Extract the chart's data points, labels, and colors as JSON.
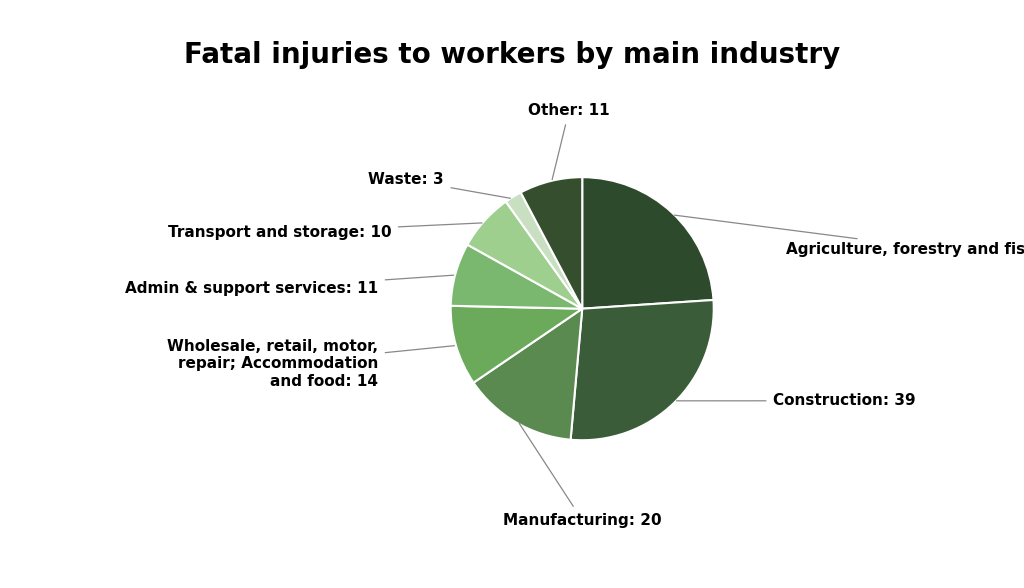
{
  "title": "Fatal injuries to workers by main industry",
  "title_fontsize": 20,
  "title_fontweight": "bold",
  "segments": [
    {
      "label": "Agriculture, forestry and fishing",
      "value": 34,
      "color": "#2d4a2d"
    },
    {
      "label": "Construction",
      "value": 39,
      "color": "#3a5c38"
    },
    {
      "label": "Manufacturing",
      "value": 20,
      "color": "#5a8a50"
    },
    {
      "label": "Wholesale, retail, motor,\nrepair; Accommodation\nand food",
      "value": 14,
      "color": "#6aaa5a"
    },
    {
      "label": "Admin & support services",
      "value": 11,
      "color": "#7ab870"
    },
    {
      "label": "Transport and storage",
      "value": 10,
      "color": "#9ecf8e"
    },
    {
      "label": "Waste",
      "value": 3,
      "color": "#c8dfc2"
    },
    {
      "label": "Other",
      "value": 11,
      "color": "#344e2e"
    }
  ],
  "background_color": "#ffffff",
  "label_fontsize": 11,
  "label_fontweight": "bold",
  "label_color": "#000000"
}
